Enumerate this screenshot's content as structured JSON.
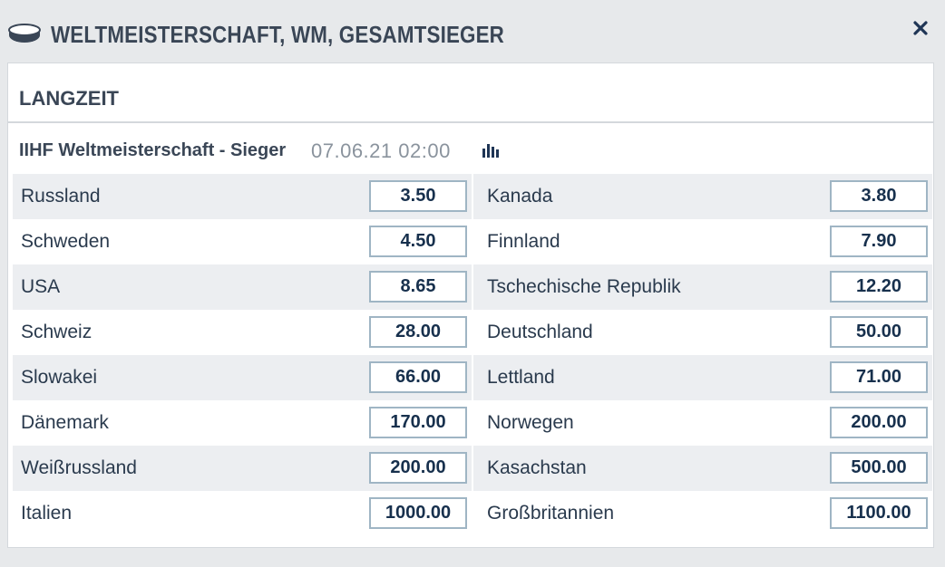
{
  "header": {
    "title": "WELTMEISTERSCHAFT, WM, GESAMTSIEGER",
    "sport_icon": "hockey-puck-icon",
    "close_icon": "close-icon"
  },
  "section": {
    "title": "LANGZEIT"
  },
  "market": {
    "name": "IIHF Weltmeisterschaft - Sieger",
    "date": "07.06.21 02:00",
    "stats_icon": "statistics-icon"
  },
  "odds": [
    {
      "left": {
        "team": "Russland",
        "odd": "3.50"
      },
      "right": {
        "team": "Kanada",
        "odd": "3.80"
      }
    },
    {
      "left": {
        "team": "Schweden",
        "odd": "4.50"
      },
      "right": {
        "team": "Finnland",
        "odd": "7.90"
      }
    },
    {
      "left": {
        "team": "USA",
        "odd": "8.65"
      },
      "right": {
        "team": "Tschechische Republik",
        "odd": "12.20"
      }
    },
    {
      "left": {
        "team": "Schweiz",
        "odd": "28.00"
      },
      "right": {
        "team": "Deutschland",
        "odd": "50.00"
      }
    },
    {
      "left": {
        "team": "Slowakei",
        "odd": "66.00"
      },
      "right": {
        "team": "Lettland",
        "odd": "71.00"
      }
    },
    {
      "left": {
        "team": "Dänemark",
        "odd": "170.00"
      },
      "right": {
        "team": "Norwegen",
        "odd": "200.00"
      }
    },
    {
      "left": {
        "team": "Weißrussland",
        "odd": "200.00"
      },
      "right": {
        "team": "Kasachstan",
        "odd": "500.00"
      }
    },
    {
      "left": {
        "team": "Italien",
        "odd": "1000.00"
      },
      "right": {
        "team": "Großbritannien",
        "odd": "1100.00"
      }
    }
  ],
  "colors": {
    "background": "#e7e9eb",
    "row_shaded": "#eceef1",
    "odd_border": "#9fb5c4",
    "odd_text": "#17304d",
    "title_text": "#3a4656"
  }
}
